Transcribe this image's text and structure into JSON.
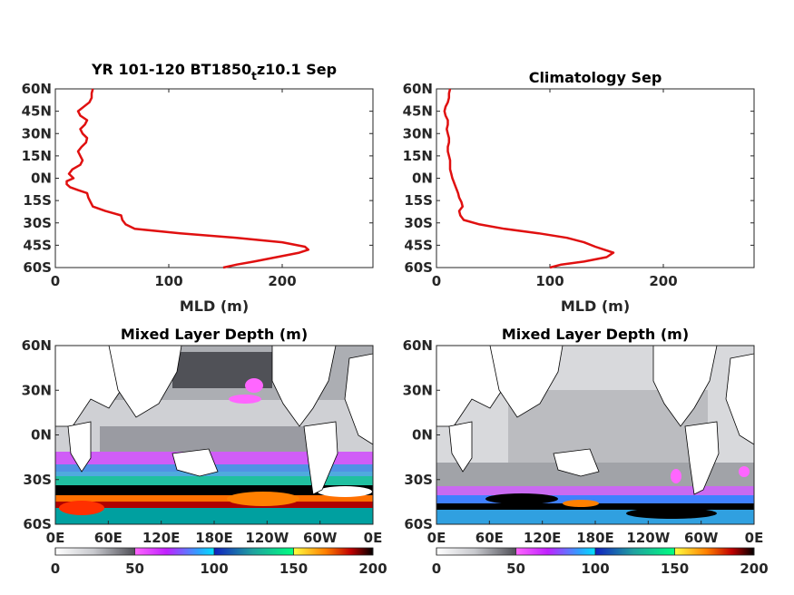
{
  "figure": {
    "colormap": [
      "#ffffff",
      "#9ea0a8",
      "#505058",
      "#ff33ff",
      "#00bfff",
      "#1030d0",
      "#00e0a0",
      "#ffff00",
      "#ff8000",
      "#c00000",
      "#000000"
    ],
    "line_color": "#e01010"
  },
  "chart_data": [
    {
      "type": "line",
      "panel": "top-left",
      "title_main": "YR 101-120 BT1850",
      "title_sub": "t",
      "title_tail": "z10.1 Sep",
      "xlabel": "MLD (m)",
      "xlim": [
        0,
        280
      ],
      "xticks": [
        "0",
        "100",
        "200"
      ],
      "yticks": [
        "60N",
        "45N",
        "30N",
        "15N",
        "0N",
        "15S",
        "30S",
        "45S",
        "60S"
      ],
      "ylim": [
        -60,
        60
      ],
      "lat": [
        60,
        57,
        54,
        51,
        48,
        45,
        42,
        39,
        36,
        33,
        30,
        27,
        24,
        21,
        18,
        15,
        12,
        9,
        6,
        3,
        0,
        -2,
        -4,
        -6,
        -8,
        -10,
        -13,
        -16,
        -19,
        -22,
        -25,
        -28,
        -31,
        -34,
        -37,
        -40,
        -43,
        -46,
        -48,
        -50,
        -53,
        -56,
        -58,
        -60
      ],
      "values": [
        33,
        32,
        32,
        30,
        25,
        20,
        22,
        28,
        26,
        22,
        24,
        28,
        27,
        23,
        20,
        22,
        24,
        22,
        15,
        12,
        16,
        10,
        10,
        13,
        20,
        28,
        29,
        31,
        33,
        44,
        58,
        59,
        62,
        70,
        110,
        160,
        200,
        220,
        223,
        215,
        195,
        175,
        160,
        148
      ]
    },
    {
      "type": "line",
      "panel": "top-right",
      "title_main": "Climatology Sep",
      "xlabel": "MLD (m)",
      "xlim": [
        0,
        280
      ],
      "xticks": [
        "0",
        "100",
        "200"
      ],
      "yticks": [
        "60N",
        "45N",
        "30N",
        "15N",
        "0N",
        "15S",
        "30S",
        "45S",
        "60S"
      ],
      "ylim": [
        -60,
        60
      ],
      "lat": [
        60,
        57,
        54,
        51,
        48,
        45,
        42,
        39,
        36,
        33,
        30,
        27,
        24,
        21,
        18,
        15,
        12,
        9,
        6,
        3,
        0,
        -2,
        -4,
        -6,
        -8,
        -10,
        -13,
        -16,
        -19,
        -22,
        -25,
        -28,
        -31,
        -34,
        -37,
        -40,
        -43,
        -46,
        -48,
        -50,
        -53,
        -56,
        -58,
        -60
      ],
      "values": [
        12,
        11,
        11,
        10,
        8,
        7,
        8,
        10,
        10,
        9,
        10,
        11,
        11,
        10,
        10,
        11,
        12,
        12,
        12,
        13,
        14,
        15,
        16,
        17,
        18,
        19,
        20,
        22,
        23,
        20,
        21,
        24,
        38,
        60,
        90,
        115,
        130,
        140,
        148,
        156,
        150,
        130,
        110,
        100
      ]
    },
    {
      "type": "heatmap",
      "panel": "bottom-left",
      "title": "Mixed Layer Depth (m)",
      "xticks": [
        "0E",
        "60E",
        "120E",
        "180E",
        "120W",
        "60W",
        "0E"
      ],
      "yticks": [
        "60N",
        "30N",
        "0N",
        "30S",
        "60S"
      ],
      "colorbar_ticks": [
        "0",
        "50",
        "100",
        "150",
        "200"
      ],
      "colorbar_range": [
        0,
        200
      ]
    },
    {
      "type": "heatmap",
      "panel": "bottom-right",
      "title": "Mixed Layer Depth (m)",
      "xticks": [
        "0E",
        "60E",
        "120E",
        "180E",
        "120W",
        "60W",
        "0E"
      ],
      "yticks": [
        "60N",
        "30N",
        "0N",
        "30S",
        "60S"
      ],
      "colorbar_ticks": [
        "0",
        "50",
        "100",
        "150",
        "200"
      ],
      "colorbar_range": [
        0,
        200
      ]
    }
  ]
}
